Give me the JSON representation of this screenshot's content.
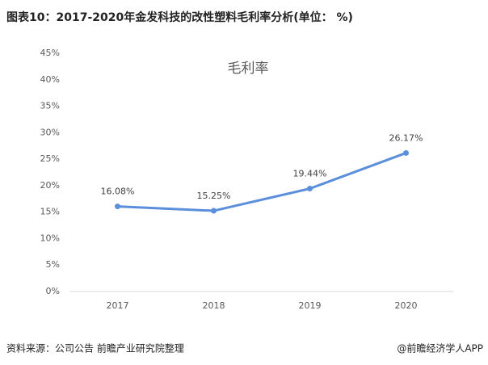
{
  "header": {
    "title": "图表10：2017-2020年金发科技的改性塑料毛利率分析(单位： %)"
  },
  "chart_data": {
    "type": "line",
    "title": "毛利率",
    "categories": [
      "2017",
      "2018",
      "2019",
      "2020"
    ],
    "series": [
      {
        "name": "毛利率",
        "color": "#5b8fdc",
        "values": [
          16.08,
          15.25,
          19.44,
          26.17
        ],
        "value_labels": [
          "16.08%",
          "15.25%",
          "19.44%",
          "26.17%"
        ]
      }
    ],
    "ylim": [
      0,
      45
    ],
    "yticks": [
      {
        "value": 0,
        "label": "0%"
      },
      {
        "value": 5,
        "label": "5%"
      },
      {
        "value": 10,
        "label": "10%"
      },
      {
        "value": 15,
        "label": "15%"
      },
      {
        "value": 20,
        "label": "20%"
      },
      {
        "value": 25,
        "label": "25%"
      },
      {
        "value": 30,
        "label": "30%"
      },
      {
        "value": 35,
        "label": "35%"
      },
      {
        "value": 40,
        "label": "40%"
      },
      {
        "value": 45,
        "label": "45%"
      }
    ],
    "grid": false
  },
  "footer": {
    "source": "资料来源：公司公告 前瞻产业研究院整理",
    "brand": "@前瞻经济学人APP"
  }
}
